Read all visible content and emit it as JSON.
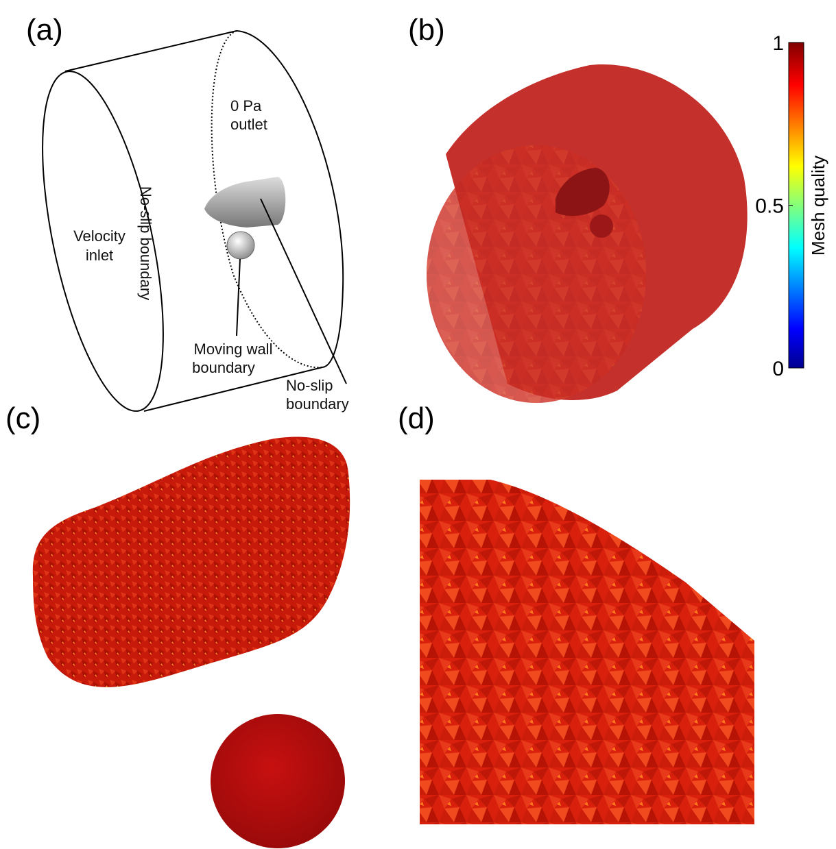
{
  "panels": [
    "(a)",
    "(b)",
    "(c)",
    "(d)"
  ],
  "annotations": {
    "outlet": [
      "0 Pa",
      "outlet"
    ],
    "wall": "No-slip boundary",
    "inlet": [
      "Velocity",
      "inlet"
    ],
    "moving": [
      "Moving wall",
      "boundary"
    ],
    "body": [
      "No-slip",
      "boundary"
    ]
  },
  "colorbar": {
    "label": "Mesh quality",
    "lim": [
      0,
      1
    ],
    "ticks": [
      0,
      0.5,
      1
    ]
  }
}
